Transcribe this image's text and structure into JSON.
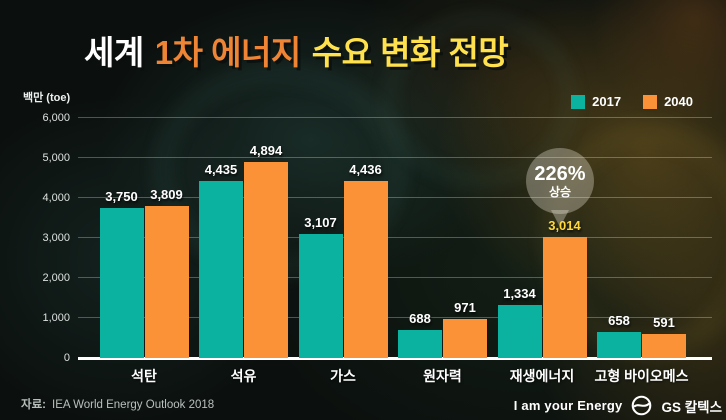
{
  "title": {
    "part1": "세계",
    "part2": "1차 에너지",
    "part3": "수요 변화 전망"
  },
  "y_axis_unit": "백만 (toe)",
  "legend": [
    {
      "label": "2017",
      "color": "#0bb2a0"
    },
    {
      "label": "2040",
      "color": "#fb9237"
    }
  ],
  "annotation": {
    "line1": "226%",
    "line2": "상승"
  },
  "source": {
    "label": "자료:",
    "text": "IEA World Energy Outlook 2018"
  },
  "footer": {
    "slogan": "I am your Energy",
    "brand": "GS 칼텍스"
  },
  "colors": {
    "series_2017": "#0bb2a0",
    "series_2040": "#fb9237",
    "title_accent_orange": "#ef8434",
    "title_accent_yellow": "#ffe14e",
    "highlight_value_label": "#ffd93c",
    "background": "#0b100e"
  },
  "chart_data": {
    "type": "bar",
    "title": "세계 1차 에너지 수요 변화 전망",
    "ylabel": "백만 (toe)",
    "xlabel": "",
    "categories": [
      "석탄",
      "석유",
      "가스",
      "원자력",
      "재생에너지",
      "고형 바이오메스"
    ],
    "series": [
      {
        "name": "2017",
        "color": "#0bb2a0",
        "values": [
          3750,
          4435,
          3107,
          688,
          1334,
          658
        ]
      },
      {
        "name": "2040",
        "color": "#fb9237",
        "values": [
          3809,
          4894,
          4436,
          971,
          3014,
          591
        ]
      }
    ],
    "ylim": [
      0,
      6000
    ],
    "ytick_step": 1000,
    "grid": true,
    "legend_position": "top-right",
    "highlight": {
      "series_index": 1,
      "category_index": 4,
      "label_color": "#ffd93c",
      "annotation": "226% 상승"
    }
  }
}
